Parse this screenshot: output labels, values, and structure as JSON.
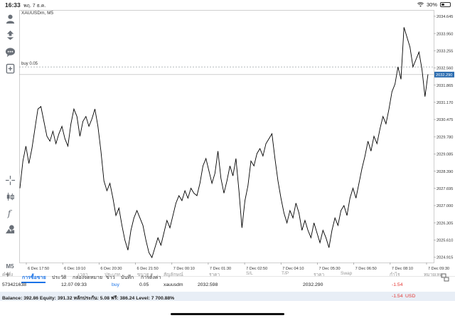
{
  "status_bar": {
    "time": "16:33",
    "date": "พฤ. 7 ธ.ค.",
    "battery": "30%"
  },
  "chart": {
    "symbol": "XAUUSDm, M5",
    "buy_line_label": "buy 0.05",
    "current_price_label": "2032.290",
    "colors": {
      "line": "#000000",
      "current_price_bg": "#2b6cb0",
      "grid": "#eeeeee",
      "buy_line": "#9aa0a6"
    }
  },
  "chart_data": {
    "type": "line",
    "x_ticks": [
      "6 Dec 17:50",
      "6 Dec 19:10",
      "6 Dec 20:30",
      "6 Dec 21:50",
      "7 Dec 00:10",
      "7 Dec 01:30",
      "7 Dec 02:50",
      "7 Dec 04:10",
      "7 Dec 05:30",
      "7 Dec 06:50",
      "7 Dec 08:10",
      "7 Dec 09:30"
    ],
    "y_ticks": [
      "2034.645",
      "2033.950",
      "2033.255",
      "2032.560",
      "2031.865",
      "2031.170",
      "2030.475",
      "2029.780",
      "2029.085",
      "2028.390",
      "2027.695",
      "2027.000",
      "2026.305",
      "2025.610",
      "2024.915"
    ],
    "ylim": [
      2024.7,
      2034.9
    ],
    "buy_level": 2032.598,
    "current": 2032.29,
    "values": [
      2027.7,
      2028.8,
      2029.4,
      2028.7,
      2029.3,
      2030.1,
      2030.9,
      2031.0,
      2030.4,
      2029.8,
      2029.6,
      2030.0,
      2029.5,
      2029.9,
      2030.2,
      2029.7,
      2029.4,
      2030.3,
      2030.9,
      2030.6,
      2029.8,
      2030.4,
      2030.6,
      2030.2,
      2030.5,
      2030.9,
      2030.2,
      2029.2,
      2028.0,
      2027.6,
      2027.9,
      2027.3,
      2026.6,
      2026.9,
      2026.2,
      2025.6,
      2025.2,
      2026.0,
      2026.5,
      2026.8,
      2026.5,
      2026.2,
      2025.6,
      2025.1,
      2024.9,
      2025.3,
      2025.7,
      2025.4,
      2025.9,
      2026.4,
      2026.1,
      2026.6,
      2027.1,
      2027.4,
      2027.2,
      2027.6,
      2027.3,
      2027.7,
      2027.5,
      2027.4,
      2027.9,
      2028.6,
      2028.9,
      2028.4,
      2027.9,
      2028.3,
      2029.2,
      2028.1,
      2027.5,
      2028.0,
      2028.6,
      2028.2,
      2028.9,
      2027.6,
      2026.1,
      2027.2,
      2027.8,
      2028.8,
      2028.6,
      2029.1,
      2029.3,
      2029.0,
      2029.5,
      2029.7,
      2029.9,
      2028.9,
      2028.0,
      2027.3,
      2026.7,
      2026.3,
      2026.8,
      2026.5,
      2027.1,
      2026.7,
      2026.0,
      2026.4,
      2026.0,
      2025.7,
      2026.3,
      2025.9,
      2025.5,
      2026.0,
      2025.7,
      2025.3,
      2026.0,
      2026.5,
      2026.2,
      2026.8,
      2027.0,
      2026.6,
      2027.3,
      2027.7,
      2027.3,
      2027.9,
      2028.5,
      2029.0,
      2029.6,
      2029.2,
      2029.8,
      2029.5,
      2030.1,
      2030.6,
      2030.3,
      2030.9,
      2031.6,
      2031.9,
      2032.6,
      2032.1,
      2034.2,
      2033.8,
      2033.4,
      2032.6,
      2032.9,
      2033.2,
      2032.5,
      2031.4,
      2032.3
    ]
  },
  "tabs": {
    "items": [
      "การซื้อขาย",
      "ประวัติ",
      "กล่องจดหมาย",
      "ข่าว",
      "บันทึก",
      "การตั้งค่า"
    ]
  },
  "table": {
    "headers": [
      "คำสั่ง",
      "เวลา",
      "ประเภท",
      "ขนาด",
      "สัญลักษณ์",
      "ราคา",
      "S/L",
      "T/P",
      "ราคา",
      "Swap",
      "กำไร",
      "หมายเหตุ"
    ],
    "row": {
      "order": "573421638",
      "time": "12.07 09:33",
      "type": "buy",
      "size": "0.05",
      "symbol": "xauusdm",
      "open_price": "2032.598",
      "current_price": "2032.290",
      "profit": "-1.54"
    }
  },
  "balance": {
    "text": "Balance: 392.86 Equity: 391.32 หลักประกัน: 5.08 ฟรี: 386.24 Level: 7 700.88%",
    "profit": "-1.54",
    "currency": "USD"
  }
}
